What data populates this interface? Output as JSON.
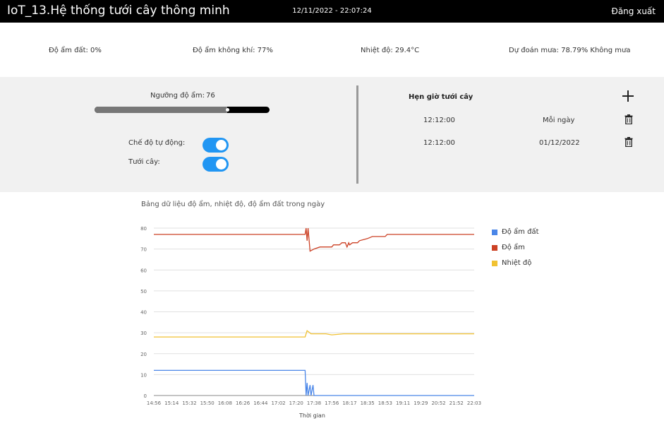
{
  "header": {
    "title": "IoT_13.Hệ thống tưới cây thông minh",
    "datetime": "12/11/2022 - 22:07:24",
    "logout_label": "Đăng xuất"
  },
  "stats": {
    "soil_moisture": "Độ ẩm đất: 0%",
    "air_humidity": "Độ ẩm không khí: 77%",
    "temperature": "Nhiệt độ: 29.4°C",
    "rain_forecast": "Dự đoán mưa: 78.79% Không mưa"
  },
  "controls": {
    "threshold_label": "Ngưỡng độ ẩm:",
    "threshold_value": "76",
    "threshold_fraction": 0.76,
    "auto_mode_label": "Chế độ tự động:",
    "auto_mode_on": true,
    "watering_label": "Tưới cây:",
    "watering_on": true
  },
  "schedule": {
    "title": "Hẹn giờ tưới cây",
    "rows": [
      {
        "time": "12:12:00",
        "repeat": "Mỗi ngày"
      },
      {
        "time": "12:12:00",
        "repeat": "01/12/2022"
      }
    ]
  },
  "chart_data": {
    "type": "line",
    "title": "Bảng dữ liệu độ ẩm, nhiệt độ, độ ẩm đất trong ngày",
    "xlabel": "Thời gian",
    "ylabel": "",
    "ylim": [
      0,
      80
    ],
    "yticks": [
      0,
      10,
      20,
      30,
      40,
      50,
      60,
      70,
      80
    ],
    "grid": true,
    "legend_position": "right",
    "x_ticks": [
      "14:56",
      "15:14",
      "15:32",
      "15:50",
      "16:08",
      "16:26",
      "16:44",
      "17:02",
      "17:20",
      "17:38",
      "17:56",
      "18:17",
      "18:35",
      "18:53",
      "19:11",
      "19:29",
      "20:52",
      "21:52",
      "22:03"
    ],
    "series": [
      {
        "name": "Độ ẩm đất",
        "color": "#4a86e8",
        "points": [
          [
            "14:56",
            12
          ],
          [
            "17:20",
            12
          ],
          [
            "17:29",
            12
          ],
          [
            "17:30",
            0
          ],
          [
            "17:31",
            6
          ],
          [
            "17:32",
            0
          ],
          [
            "17:34",
            5
          ],
          [
            "17:35",
            0
          ],
          [
            "17:37",
            5
          ],
          [
            "17:38",
            0
          ],
          [
            "22:03",
            0
          ]
        ]
      },
      {
        "name": "Độ ẩm",
        "color": "#cc4125",
        "points": [
          [
            "14:56",
            77
          ],
          [
            "17:29",
            77
          ],
          [
            "17:30",
            80
          ],
          [
            "17:31",
            74
          ],
          [
            "17:32",
            80
          ],
          [
            "17:34",
            69
          ],
          [
            "17:38",
            70
          ],
          [
            "17:44",
            71
          ],
          [
            "17:56",
            71
          ],
          [
            "17:58",
            72
          ],
          [
            "18:05",
            72
          ],
          [
            "18:08",
            73
          ],
          [
            "18:12",
            73
          ],
          [
            "18:14",
            71
          ],
          [
            "18:16",
            73
          ],
          [
            "18:17",
            72
          ],
          [
            "18:20",
            73
          ],
          [
            "18:25",
            73
          ],
          [
            "18:27",
            74
          ],
          [
            "18:35",
            75
          ],
          [
            "18:40",
            76
          ],
          [
            "18:53",
            76
          ],
          [
            "18:55",
            77
          ],
          [
            "22:03",
            77
          ]
        ]
      },
      {
        "name": "Nhiệt độ",
        "color": "#f1c232",
        "points": [
          [
            "14:56",
            28
          ],
          [
            "17:29",
            28
          ],
          [
            "17:31",
            31
          ],
          [
            "17:35",
            29.5
          ],
          [
            "17:50",
            29.5
          ],
          [
            "17:56",
            29
          ],
          [
            "18:10",
            29.5
          ],
          [
            "22:03",
            29.5
          ]
        ]
      }
    ]
  }
}
